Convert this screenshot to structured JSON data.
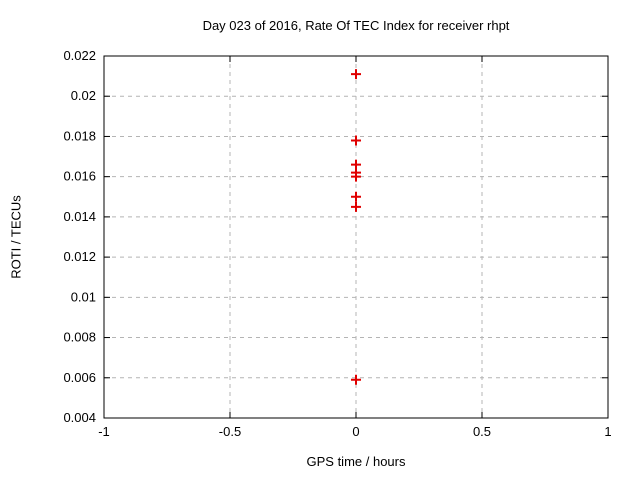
{
  "chart_data": {
    "type": "scatter",
    "title": "Day 023 of 2016, Rate Of TEC Index for receiver rhpt",
    "xlabel": "GPS time / hours",
    "ylabel": "ROTI / TECUs",
    "xlim": [
      -1,
      1
    ],
    "ylim": [
      0.004,
      0.022
    ],
    "xticks": [
      {
        "value": -1,
        "label": "-1"
      },
      {
        "value": -0.5,
        "label": "-0.5"
      },
      {
        "value": 0,
        "label": "0"
      },
      {
        "value": 0.5,
        "label": "0.5"
      },
      {
        "value": 1,
        "label": "1"
      }
    ],
    "yticks": [
      {
        "value": 0.004,
        "label": "0.004"
      },
      {
        "value": 0.006,
        "label": "0.006"
      },
      {
        "value": 0.008,
        "label": "0.008"
      },
      {
        "value": 0.01,
        "label": "0.01"
      },
      {
        "value": 0.012,
        "label": "0.012"
      },
      {
        "value": 0.014,
        "label": "0.014"
      },
      {
        "value": 0.016,
        "label": "0.016"
      },
      {
        "value": 0.018,
        "label": "0.018"
      },
      {
        "value": 0.02,
        "label": "0.02"
      },
      {
        "value": 0.022,
        "label": "0.022"
      }
    ],
    "grid": true,
    "legend_position": "none",
    "marker": "plus",
    "series": [
      {
        "name": "ROTI",
        "points": [
          [
            0,
            0.0211
          ],
          [
            0,
            0.0178
          ],
          [
            0,
            0.0166
          ],
          [
            0,
            0.0162
          ],
          [
            0,
            0.016
          ],
          [
            0,
            0.015
          ],
          [
            0,
            0.0145
          ],
          [
            0,
            0.0059
          ]
        ]
      }
    ]
  },
  "colors": {
    "marker": "#e00000",
    "grid": "#b4b4b4",
    "border": "#000000",
    "background": "#ffffff",
    "text": "#000000"
  }
}
